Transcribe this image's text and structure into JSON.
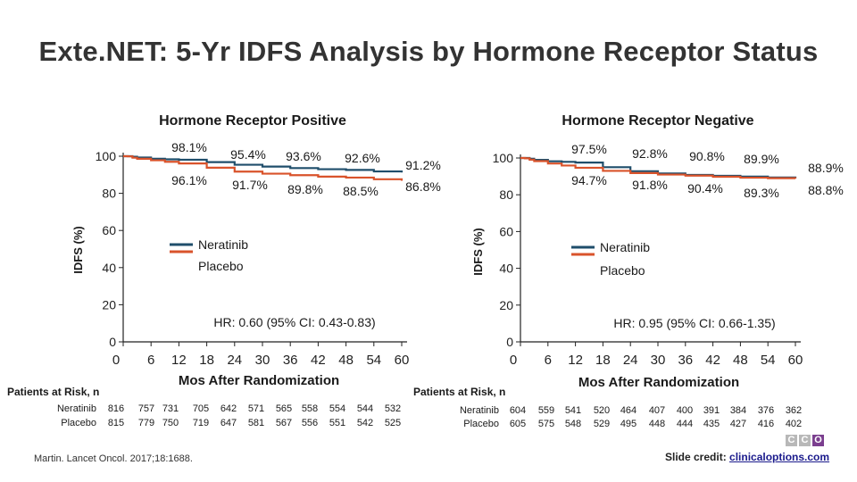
{
  "title": "Exte.NET: 5-Yr IDFS Analysis by Hormone Receptor Status",
  "citation": "Martin. Lancet Oncol. 2017;18:1688.",
  "credit": {
    "label": "Slide credit:",
    "link": "clinicaloptions.com"
  },
  "logo": [
    "C",
    "C",
    "O"
  ],
  "colors": {
    "neratinib": "#1f4e6b",
    "placebo": "#d9532b",
    "title": "#333333"
  },
  "chart_data": [
    {
      "type": "line",
      "title": "Hormone Receptor Positive",
      "xlabel": "Mos After Randomization",
      "ylabel": "IDFS (%)",
      "xlim": [
        0,
        60
      ],
      "ylim": [
        0,
        100
      ],
      "xticks": [
        0,
        6,
        12,
        18,
        24,
        30,
        36,
        42,
        48,
        54,
        60
      ],
      "yticks": [
        0,
        20,
        40,
        60,
        80,
        100
      ],
      "legend": [
        "Neratinib",
        "Placebo"
      ],
      "hr_text": "HR: 0.60 (95% CI: 0.43-0.83)",
      "series": [
        {
          "name": "Neratinib",
          "x": [
            0,
            1,
            2,
            3,
            6,
            9,
            12,
            18,
            24,
            30,
            36,
            42,
            48,
            54,
            60
          ],
          "values": [
            100,
            100,
            99.7,
            99.3,
            98.6,
            98.3,
            98.1,
            96.8,
            95.4,
            94.4,
            93.6,
            93.0,
            92.6,
            91.8,
            91.2
          ]
        },
        {
          "name": "Placebo",
          "x": [
            0,
            1,
            2,
            3,
            6,
            9,
            12,
            18,
            24,
            30,
            36,
            42,
            48,
            54,
            60
          ],
          "values": [
            100,
            99.9,
            99.2,
            98.6,
            97.8,
            97.0,
            96.1,
            93.8,
            91.7,
            90.6,
            89.8,
            89.0,
            88.5,
            87.6,
            86.8
          ]
        }
      ],
      "annotations": {
        "neratinib": [
          "98.1%",
          "95.4%",
          "93.6%",
          "92.6%",
          "91.2%"
        ],
        "placebo": [
          "96.1%",
          "91.7%",
          "89.8%",
          "88.5%",
          "86.8%"
        ]
      },
      "at_risk": {
        "label": "Patients at Risk, n",
        "rows": [
          {
            "name": "Neratinib",
            "values": [
              "816",
              "757",
              "731",
              "705",
              "642",
              "571",
              "565",
              "558",
              "554",
              "544",
              "532"
            ]
          },
          {
            "name": "Placebo",
            "values": [
              "815",
              "779",
              "750",
              "719",
              "647",
              "581",
              "567",
              "556",
              "551",
              "542",
              "525"
            ]
          }
        ]
      }
    },
    {
      "type": "line",
      "title": "Hormone Receptor Negative",
      "xlabel": "Mos After Randomization",
      "ylabel": "IDFS (%)",
      "xlim": [
        0,
        60
      ],
      "ylim": [
        0,
        100
      ],
      "xticks": [
        0,
        6,
        12,
        18,
        24,
        30,
        36,
        42,
        48,
        54,
        60
      ],
      "yticks": [
        0,
        20,
        40,
        60,
        80,
        100
      ],
      "legend": [
        "Neratinib",
        "Placebo"
      ],
      "hr_text": "HR: 0.95 (95% CI: 0.66-1.35)",
      "series": [
        {
          "name": "Neratinib",
          "x": [
            0,
            1,
            2,
            3,
            6,
            9,
            12,
            18,
            24,
            30,
            36,
            42,
            48,
            54,
            60
          ],
          "values": [
            100,
            100,
            99.6,
            99.0,
            98.2,
            97.9,
            97.5,
            95.0,
            92.8,
            91.6,
            90.8,
            90.3,
            89.9,
            89.4,
            88.9
          ]
        },
        {
          "name": "Placebo",
          "x": [
            0,
            1,
            2,
            3,
            6,
            9,
            12,
            18,
            24,
            30,
            36,
            42,
            48,
            54,
            60
          ],
          "values": [
            100,
            99.8,
            99.1,
            98.3,
            97.0,
            95.9,
            94.7,
            93.0,
            91.8,
            91.0,
            90.4,
            89.8,
            89.3,
            89.0,
            88.8
          ]
        }
      ],
      "annotations": {
        "neratinib": [
          "97.5%",
          "92.8%",
          "90.8%",
          "89.9%",
          "88.9%"
        ],
        "placebo": [
          "94.7%",
          "91.8%",
          "90.4%",
          "89.3%",
          "88.8%"
        ]
      },
      "at_risk": {
        "label": "Patients at Risk, n",
        "rows": [
          {
            "name": "Neratinib",
            "values": [
              "604",
              "559",
              "541",
              "520",
              "464",
              "407",
              "400",
              "391",
              "384",
              "376",
              "362"
            ]
          },
          {
            "name": "Placebo",
            "values": [
              "605",
              "575",
              "548",
              "529",
              "495",
              "448",
              "444",
              "435",
              "427",
              "416",
              "402"
            ]
          }
        ]
      }
    }
  ]
}
